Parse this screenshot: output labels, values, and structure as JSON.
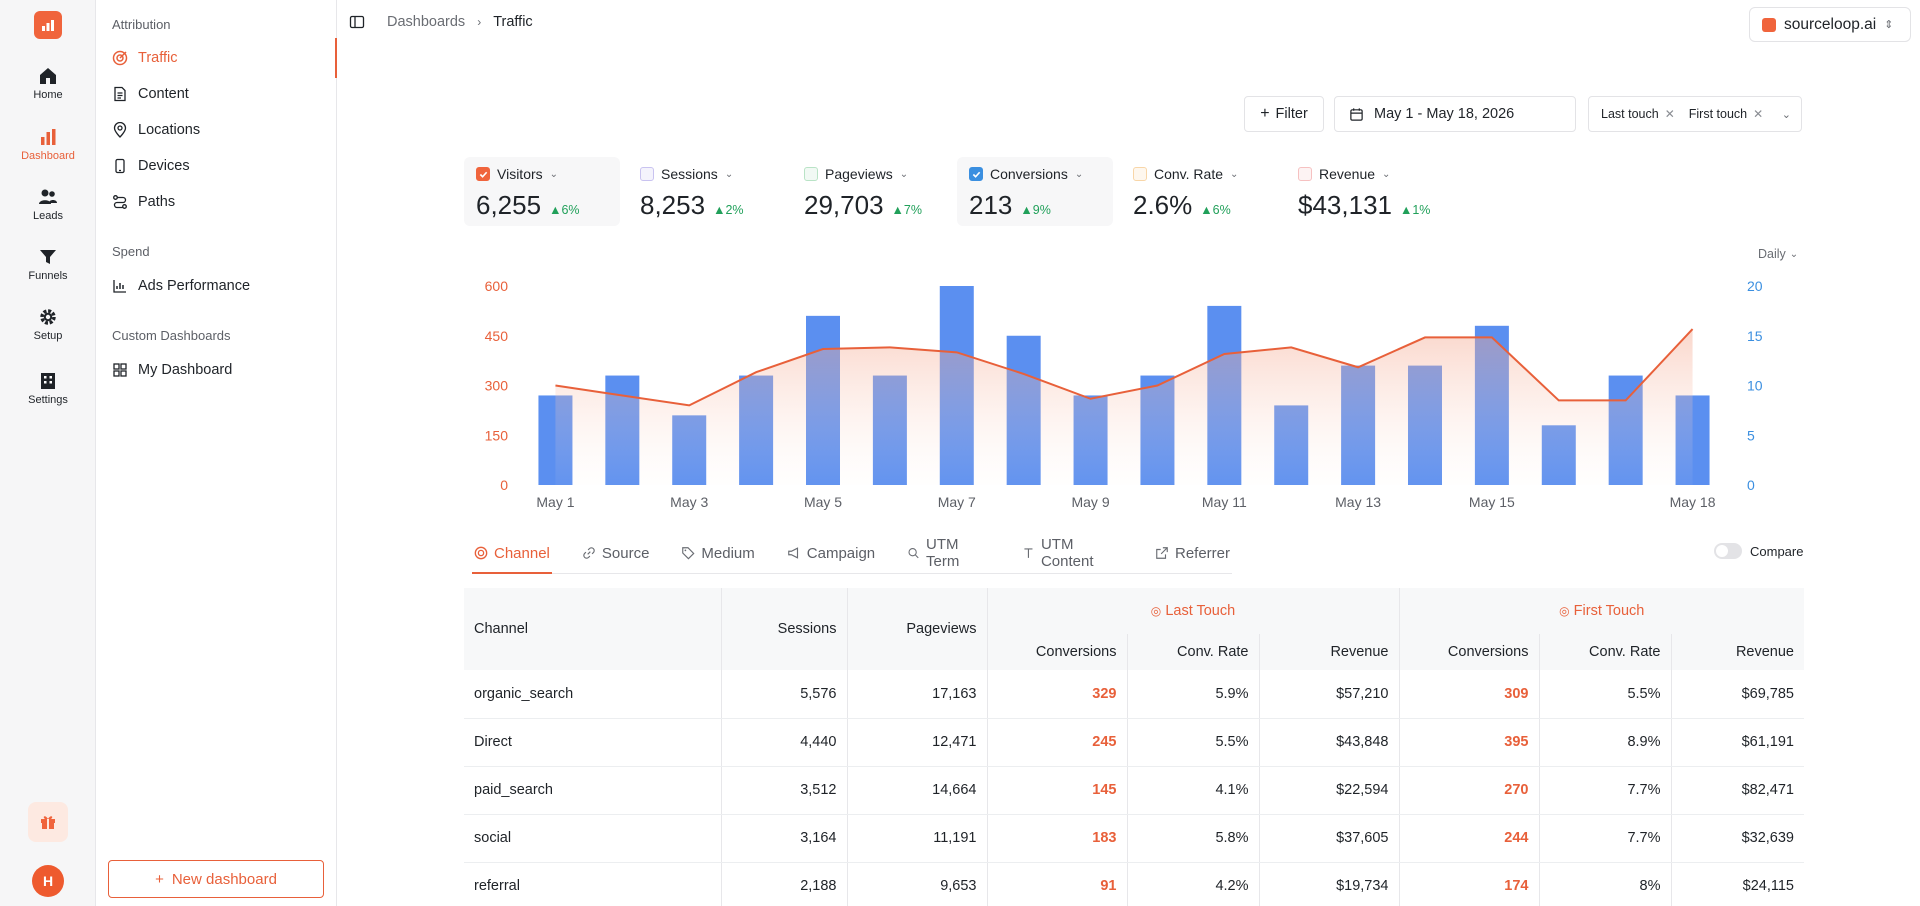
{
  "rail": {
    "items": [
      {
        "label": "Home",
        "icon": "home-icon",
        "active": false
      },
      {
        "label": "Dashboard",
        "icon": "bar-chart-icon",
        "active": true
      },
      {
        "label": "Leads",
        "icon": "users-icon",
        "active": false
      },
      {
        "label": "Funnels",
        "icon": "funnel-icon",
        "active": false
      },
      {
        "label": "Setup",
        "icon": "gear-icon",
        "active": false
      },
      {
        "label": "Settings",
        "icon": "building-icon",
        "active": false
      }
    ],
    "avatar": "H"
  },
  "sidebar": {
    "sections": [
      {
        "title": "Attribution",
        "items": [
          "Traffic",
          "Content",
          "Locations",
          "Devices",
          "Paths"
        ]
      },
      {
        "title": "Spend",
        "items": [
          "Ads Performance"
        ]
      },
      {
        "title": "Custom Dashboards",
        "items": [
          "My Dashboard"
        ]
      }
    ],
    "active_item": "Traffic",
    "new_dashboard": "New dashboard"
  },
  "header": {
    "breadcrumb_root": "Dashboards",
    "breadcrumb_current": "Traffic",
    "org": "sourceloop.ai"
  },
  "toolbar": {
    "filter": "Filter",
    "date_range": "May 1 - May 18, 2026",
    "models": [
      "Last touch",
      "First touch"
    ]
  },
  "metrics": [
    {
      "label": "Visitors",
      "value": "6,255",
      "delta": "6%",
      "checked": true,
      "color": "#f0643c"
    },
    {
      "label": "Sessions",
      "value": "8,253",
      "delta": "2%",
      "checked": false,
      "color": "#c9c3f0"
    },
    {
      "label": "Pageviews",
      "value": "29,703",
      "delta": "7%",
      "checked": false,
      "color": "#b9e3c6"
    },
    {
      "label": "Conversions",
      "value": "213",
      "delta": "9%",
      "checked": true,
      "color": "#3b8fe0"
    },
    {
      "label": "Conv. Rate",
      "value": "2.6%",
      "delta": "6%",
      "checked": false,
      "color": "#f8d6a8"
    },
    {
      "label": "Revenue",
      "value": "$43,131",
      "delta": "1%",
      "checked": false,
      "color": "#f6c1c1"
    }
  ],
  "chart": {
    "granularity": "Daily"
  },
  "chart_data": {
    "type": "bar",
    "categories": [
      "May 1",
      "May 2",
      "May 3",
      "May 4",
      "May 5",
      "May 6",
      "May 7",
      "May 8",
      "May 9",
      "May 10",
      "May 11",
      "May 12",
      "May 13",
      "May 14",
      "May 15",
      "May 16",
      "May 17",
      "May 18"
    ],
    "x_tick_labels": [
      "May 1",
      "May 3",
      "May 5",
      "May 7",
      "May 9",
      "May 11",
      "May 13",
      "May 15",
      "May 18"
    ],
    "series": [
      {
        "name": "Visitors",
        "type": "line-area",
        "axis": "left",
        "color": "#e8603a",
        "values": [
          300,
          270,
          240,
          340,
          410,
          415,
          400,
          335,
          260,
          300,
          395,
          415,
          355,
          445,
          445,
          255,
          255,
          470
        ]
      },
      {
        "name": "Conversions",
        "type": "bar",
        "axis": "right",
        "color": "#5b8ff0",
        "values": [
          9,
          11,
          7,
          11,
          17,
          11,
          20,
          15,
          9,
          11,
          18,
          8,
          12,
          12,
          16,
          6,
          11,
          9
        ]
      }
    ],
    "y_left": {
      "ticks": [
        0,
        150,
        300,
        450,
        600
      ],
      "range": [
        0,
        600
      ],
      "color": "#e8603a"
    },
    "y_right": {
      "ticks": [
        0,
        5,
        10,
        15,
        20
      ],
      "range": [
        0,
        20
      ],
      "color": "#3b8fe0"
    },
    "grid": false
  },
  "tabs": [
    {
      "label": "Channel",
      "icon": "target-icon",
      "active": true
    },
    {
      "label": "Source",
      "icon": "link-icon",
      "active": false
    },
    {
      "label": "Medium",
      "icon": "tag-icon",
      "active": false
    },
    {
      "label": "Campaign",
      "icon": "megaphone-icon",
      "active": false
    },
    {
      "label": "UTM Term",
      "icon": "search-icon",
      "active": false
    },
    {
      "label": "UTM Content",
      "icon": "text-icon",
      "active": false
    },
    {
      "label": "Referrer",
      "icon": "external-link-icon",
      "active": false
    }
  ],
  "compare_label": "Compare",
  "table": {
    "group_last": "Last Touch",
    "group_first": "First Touch",
    "columns": {
      "channel": "Channel",
      "sessions": "Sessions",
      "pageviews": "Pageviews",
      "conversions": "Conversions",
      "conv_rate": "Conv. Rate",
      "revenue": "Revenue"
    },
    "rows": [
      [
        "organic_search",
        "5,576",
        "17,163",
        "329",
        "5.9%",
        "$57,210",
        "309",
        "5.5%",
        "$69,785"
      ],
      [
        "Direct",
        "4,440",
        "12,471",
        "245",
        "5.5%",
        "$43,848",
        "395",
        "8.9%",
        "$61,191"
      ],
      [
        "paid_search",
        "3,512",
        "14,664",
        "145",
        "4.1%",
        "$22,594",
        "270",
        "7.7%",
        "$82,471"
      ],
      [
        "social",
        "3,164",
        "11,191",
        "183",
        "5.8%",
        "$37,605",
        "244",
        "7.7%",
        "$32,639"
      ],
      [
        "referral",
        "2,188",
        "9,653",
        "91",
        "4.2%",
        "$19,734",
        "174",
        "8%",
        "$24,115"
      ]
    ]
  }
}
